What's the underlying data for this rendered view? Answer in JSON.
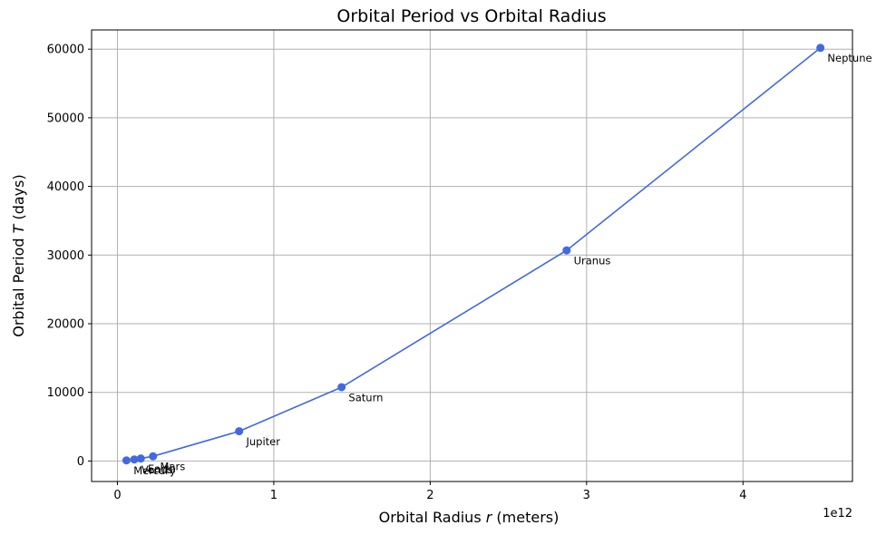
{
  "chart_data": {
    "type": "line",
    "title": "Orbital Period vs Orbital Radius",
    "xlabel_prefix": "Orbital Radius ",
    "xlabel_var": "r",
    "xlabel_suffix": " (meters)",
    "ylabel_prefix": "Orbital Period ",
    "ylabel_var": "T",
    "ylabel_suffix": " (days)",
    "x_offset_label": "1e12",
    "xlim": [
      -0.165,
      4.7
    ],
    "ylim": [
      -2985,
      62800
    ],
    "x_ticks": [
      0,
      1,
      2,
      3,
      4
    ],
    "x_tick_labels": [
      "0",
      "1",
      "2",
      "3",
      "4"
    ],
    "y_ticks": [
      0,
      10000,
      20000,
      30000,
      40000,
      50000,
      60000
    ],
    "y_tick_labels": [
      "0",
      "10000",
      "20000",
      "30000",
      "40000",
      "50000",
      "60000"
    ],
    "grid": true,
    "line_color": "#4169e1",
    "series": [
      {
        "points": [
          {
            "label": "Mercury",
            "x": 0.0579,
            "y": 88
          },
          {
            "label": "Venus",
            "x": 0.1082,
            "y": 225
          },
          {
            "label": "Earth",
            "x": 0.1496,
            "y": 365
          },
          {
            "label": "Mars",
            "x": 0.2279,
            "y": 687
          },
          {
            "label": "Jupiter",
            "x": 0.7785,
            "y": 4333
          },
          {
            "label": "Saturn",
            "x": 1.4335,
            "y": 10759
          },
          {
            "label": "Uranus",
            "x": 2.8725,
            "y": 30687
          },
          {
            "label": "Neptune",
            "x": 4.4951,
            "y": 60190
          }
        ]
      }
    ]
  }
}
